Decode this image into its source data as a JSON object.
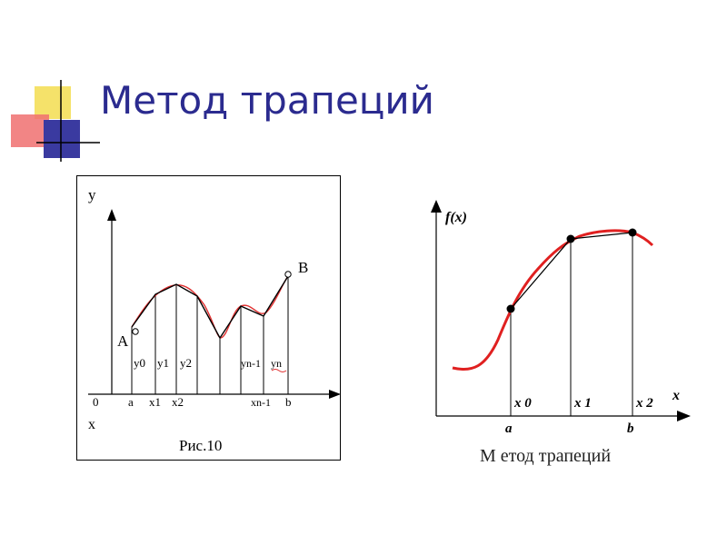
{
  "slide": {
    "title": "Метод трапеций"
  },
  "figure_left": {
    "caption": "Рис.10",
    "axis_y": "y",
    "axis_x": "x",
    "origin": "0",
    "point_a_label": "A",
    "point_b_label": "B",
    "x_ticks": [
      "a",
      "x1",
      "x2",
      "xn-1",
      "b"
    ],
    "y_labels": [
      "y0",
      "y1",
      "y2",
      "yn-1",
      "yn"
    ],
    "colors": {
      "curve": "#e03030",
      "polyline": "#000000"
    }
  },
  "figure_right": {
    "caption": "М етод трапеций",
    "axis_y": "f(x)",
    "axis_x": "x",
    "lower_labels": [
      "a",
      "b"
    ],
    "node_labels": [
      "x 0",
      "x 1",
      "x 2"
    ],
    "colors": {
      "curve": "#e02020",
      "chord": "#000000"
    }
  }
}
